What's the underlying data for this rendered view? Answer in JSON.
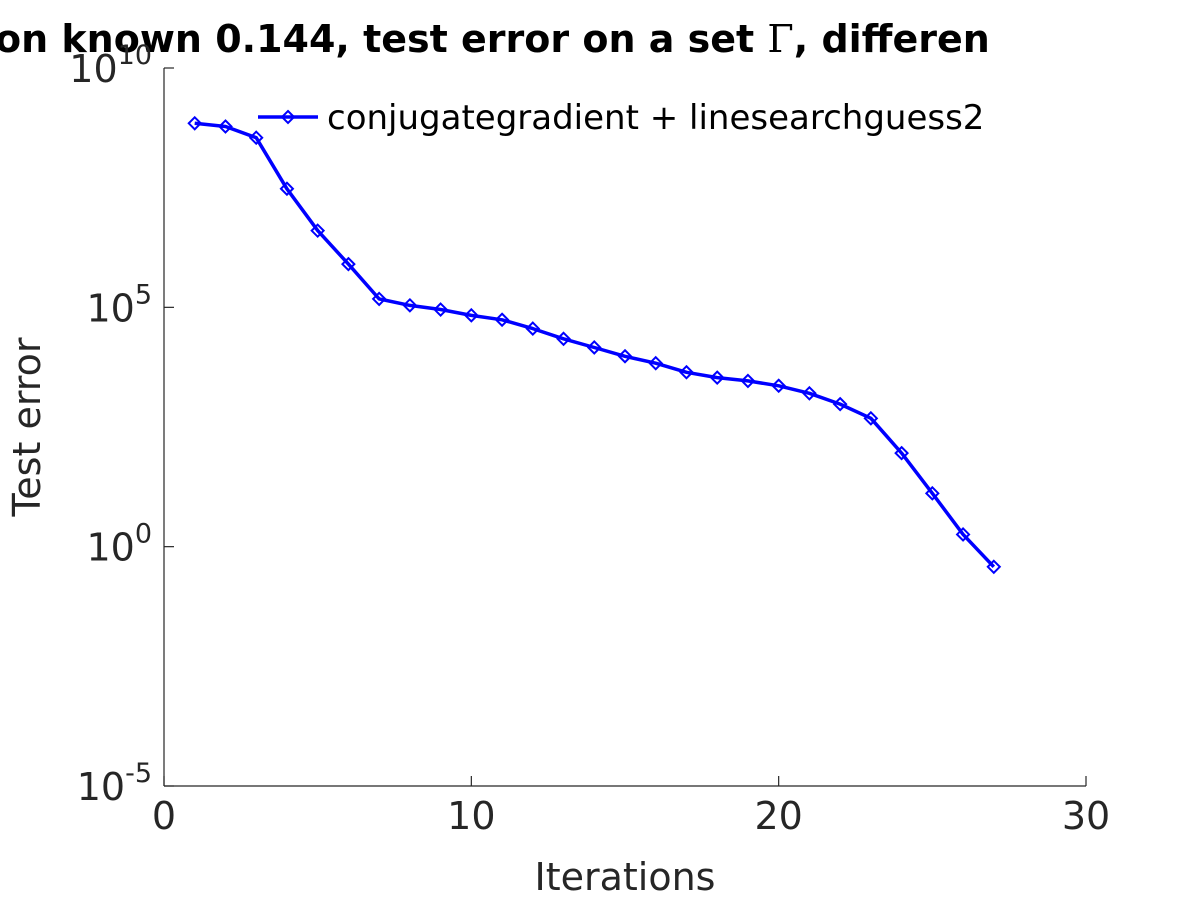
{
  "chart_data": {
    "type": "line",
    "title": {
      "prefix": "on known 0.144, test error on a set ",
      "symbol": "Γ",
      "suffix": ", differen"
    },
    "xlabel": "Iterations",
    "ylabel": "Test error",
    "xlim": [
      0,
      30
    ],
    "ylim_log10": [
      -5,
      10
    ],
    "y_scale": "log",
    "grid": false,
    "legend_position": "top",
    "x_ticks": [
      "0",
      "10",
      "20",
      "30"
    ],
    "y_ticks": [
      {
        "base": "10",
        "exp": "-5"
      },
      {
        "base": "10",
        "exp": "0"
      },
      {
        "base": "10",
        "exp": "5"
      },
      {
        "base": "10",
        "exp": "10"
      }
    ],
    "series": [
      {
        "name": "conjugategradient + linesearchguess2",
        "color": "#0000ff",
        "marker": "diamond",
        "x": [
          1,
          2,
          3,
          4,
          5,
          6,
          7,
          8,
          9,
          10,
          11,
          12,
          13,
          14,
          15,
          16,
          17,
          18,
          19,
          20,
          21,
          22,
          23,
          24,
          25,
          26,
          27
        ],
        "y": [
          700000000.0,
          600000000.0,
          350000000.0,
          30000000.0,
          4000000.0,
          800000.0,
          150000.0,
          110000.0,
          90000.0,
          68000.0,
          55000.0,
          36000.0,
          22000.0,
          14500.0,
          9500.0,
          6800.0,
          4400.0,
          3400.0,
          2900.0,
          2300.0,
          1600.0,
          950.0,
          480.0,
          90,
          13,
          1.8,
          0.38
        ]
      }
    ]
  }
}
